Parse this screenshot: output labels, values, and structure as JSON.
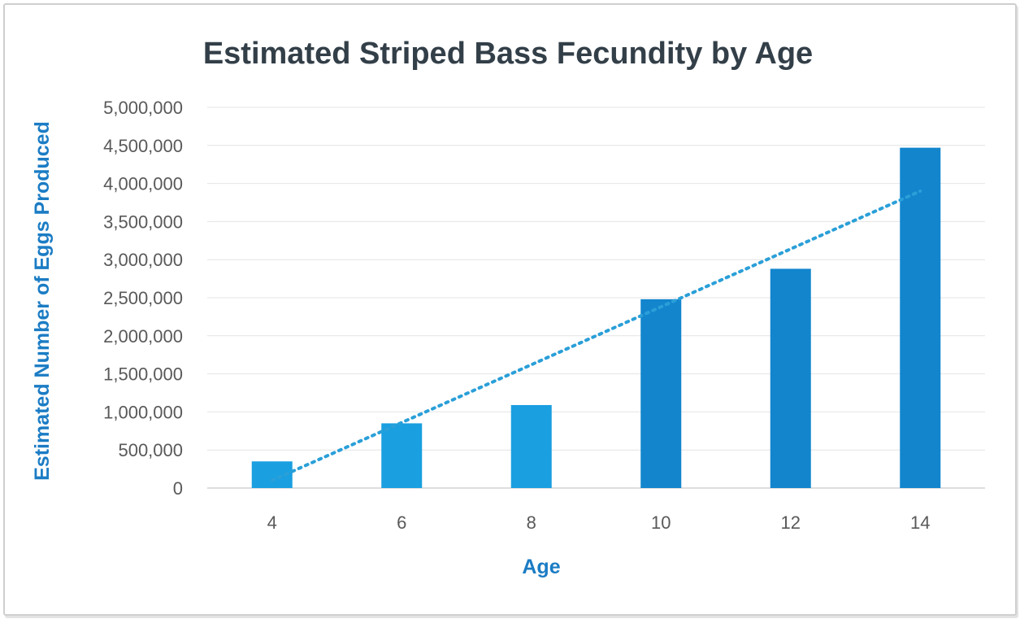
{
  "chart_data": {
    "type": "bar",
    "title": "Estimated Striped Bass Fecundity by Age",
    "xlabel": "Age",
    "ylabel": "Estimated Number of Eggs Produced",
    "categories": [
      "4",
      "6",
      "8",
      "10",
      "12",
      "14"
    ],
    "values": [
      350000,
      850000,
      1090000,
      2480000,
      2880000,
      4470000
    ],
    "ylim": [
      0,
      5000000
    ],
    "yticks": [
      "0",
      "500,000",
      "1,000,000",
      "1,500,000",
      "2,000,000",
      "2,500,000",
      "3,000,000",
      "3,500,000",
      "4,000,000",
      "4,500,000",
      "5,000,000"
    ],
    "trendline": {
      "style": "dotted",
      "type": "linear",
      "start": 100000,
      "end": 3900000
    },
    "grid": true,
    "legend": "none",
    "colors": {
      "bars_light": "#1a9fe0",
      "bars_dark": "#1285cd",
      "trend": "#2a9fd8",
      "title": "#333f48",
      "axis_label": "#1b7cc4",
      "tick": "#595959",
      "grid": "#e4e4e4"
    }
  }
}
